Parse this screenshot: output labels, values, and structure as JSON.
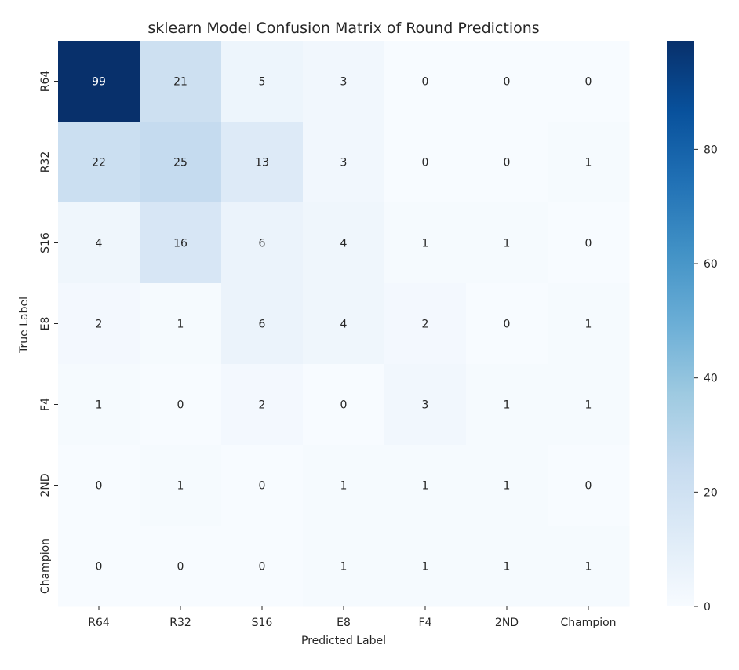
{
  "chart_data": {
    "type": "heatmap",
    "title": "sklearn Model Confusion Matrix of Round Predictions",
    "xlabel": "Predicted Label",
    "ylabel": "True Label",
    "x_categories": [
      "R64",
      "R32",
      "S16",
      "E8",
      "F4",
      "2ND",
      "Champion"
    ],
    "y_categories": [
      "R64",
      "R32",
      "S16",
      "E8",
      "F4",
      "2ND",
      "Champion"
    ],
    "values": [
      [
        99,
        21,
        5,
        3,
        0,
        0,
        0
      ],
      [
        22,
        25,
        13,
        3,
        0,
        0,
        1
      ],
      [
        4,
        16,
        6,
        4,
        1,
        1,
        0
      ],
      [
        2,
        1,
        6,
        4,
        2,
        0,
        1
      ],
      [
        1,
        0,
        2,
        0,
        3,
        1,
        1
      ],
      [
        0,
        1,
        0,
        1,
        1,
        1,
        0
      ],
      [
        0,
        0,
        0,
        1,
        1,
        1,
        1
      ]
    ],
    "colormap": "Blues",
    "vmin": 0,
    "vmax": 99,
    "colorbar_ticks": [
      "0",
      "20",
      "40",
      "60",
      "80"
    ],
    "colorbar_tick_values": [
      0,
      20,
      40,
      60,
      80
    ],
    "annotation_text_dark": "#262626",
    "annotation_text_light": "#ffffff"
  }
}
